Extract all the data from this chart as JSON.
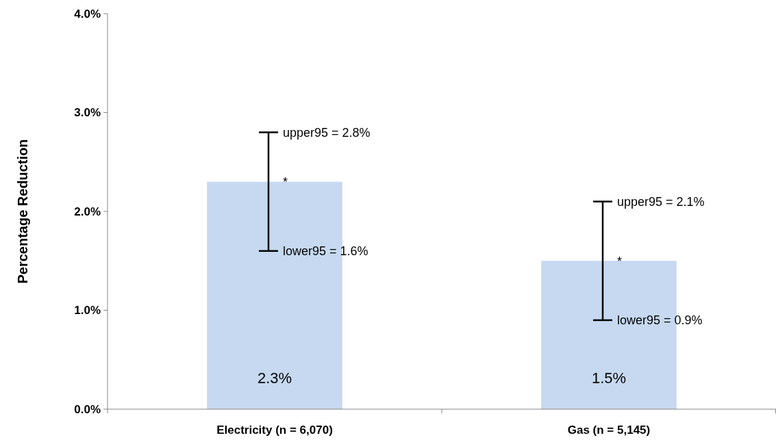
{
  "chart_data": {
    "type": "bar",
    "ylabel": "Percentage Reduction",
    "categories": [
      "Electricity (n = 6,070)",
      "Gas (n = 5,145)"
    ],
    "values": [
      2.3,
      1.5
    ],
    "color": "#c6d9f0",
    "errors": [
      [
        1.6,
        2.8
      ],
      [
        0.9,
        2.1
      ]
    ],
    "value_labels": [
      "2.3%",
      "1.5%"
    ],
    "ylim": [
      0,
      4
    ],
    "yticks": [
      {
        "value": 0,
        "label": "0.0%"
      },
      {
        "value": 1,
        "label": "1.0%"
      },
      {
        "value": 2,
        "label": "2.0%"
      },
      {
        "value": 3,
        "label": "3.0%"
      },
      {
        "value": 4,
        "label": "4.0%"
      }
    ],
    "grid": false,
    "annotations": [
      {
        "text": "upper95 = 2.8%",
        "x": "Electricity (n = 6,070)",
        "y": 2.8
      },
      {
        "text": "lower95 = 1.6%",
        "x": "Electricity (n = 6,070)",
        "y": 1.6
      },
      {
        "text": "*",
        "x": "Electricity (n = 6,070)",
        "y": 2.3
      },
      {
        "text": "upper95 = 2.1%",
        "x": "Gas (n = 5,145)",
        "y": 2.1
      },
      {
        "text": "lower95 = 0.9%",
        "x": "Gas (n = 5,145)",
        "y": 0.9
      },
      {
        "text": "*",
        "x": "Gas (n = 5,145)",
        "y": 1.5
      }
    ]
  }
}
